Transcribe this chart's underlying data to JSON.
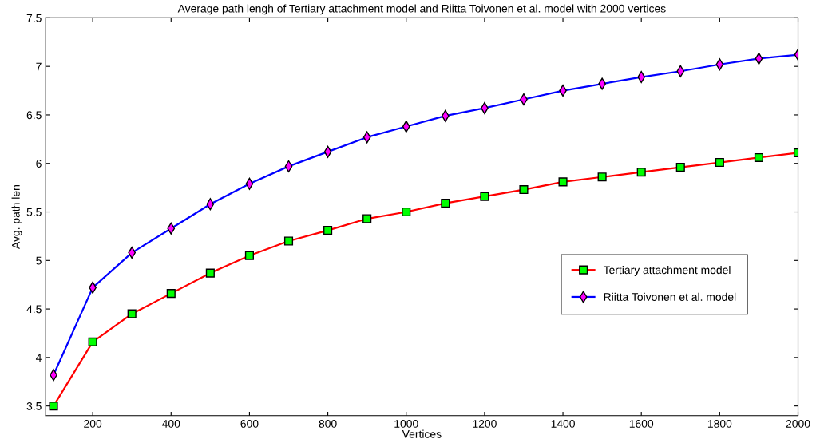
{
  "chart_data": {
    "type": "line",
    "title": "Average path lengh of Tertiary attachment model and Riitta Toivonen et al. model with 2000 vertices",
    "xlabel": "Vertices",
    "ylabel": "Avg. path len",
    "x": [
      100,
      200,
      300,
      400,
      500,
      600,
      700,
      800,
      900,
      1000,
      1100,
      1200,
      1300,
      1400,
      1500,
      1600,
      1700,
      1800,
      1900,
      2000
    ],
    "series": [
      {
        "name": "Tertiary attachment model",
        "color": "#ff0000",
        "marker": "square",
        "values": [
          3.5,
          4.16,
          4.45,
          4.66,
          4.87,
          5.05,
          5.2,
          5.31,
          5.43,
          5.5,
          5.59,
          5.66,
          5.73,
          5.81,
          5.86,
          5.91,
          5.96,
          6.01,
          6.06,
          6.11
        ]
      },
      {
        "name": "Riitta Toivonen et al. model",
        "color": "#0000ff",
        "marker": "diamond",
        "values": [
          3.82,
          4.72,
          5.08,
          5.33,
          5.58,
          5.79,
          5.97,
          6.12,
          6.27,
          6.38,
          6.49,
          6.57,
          6.66,
          6.75,
          6.82,
          6.89,
          6.95,
          7.02,
          7.08,
          7.12
        ]
      }
    ],
    "xlim": [
      80,
      2000
    ],
    "xticks": [
      200,
      400,
      600,
      800,
      1000,
      1200,
      1400,
      1600,
      1800,
      2000
    ],
    "ylim": [
      3.4,
      7.5
    ],
    "yticks": [
      3.5,
      4,
      4.5,
      5,
      5.5,
      6,
      6.5,
      7,
      7.5
    ],
    "grid": false,
    "legend": "right",
    "line_style": "solid"
  }
}
